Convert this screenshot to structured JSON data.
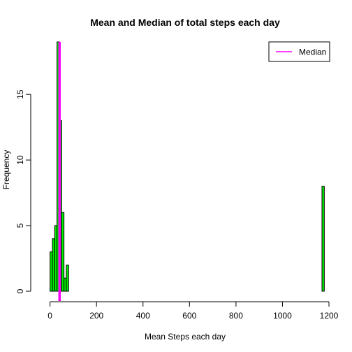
{
  "chart_data": {
    "type": "bar",
    "title": "Mean and Median of total steps each day",
    "xlabel": "Mean Steps each day",
    "ylabel": "Frequency",
    "xlim": [
      -38,
      1200
    ],
    "ylim": [
      0,
      19
    ],
    "x_ticks": [
      0,
      200,
      400,
      600,
      800,
      1000,
      1200
    ],
    "y_ticks": [
      0,
      5,
      10,
      15
    ],
    "bin_width": 10,
    "bins": [
      {
        "x0": 0,
        "x1": 10,
        "count": 3
      },
      {
        "x0": 10,
        "x1": 20,
        "count": 4
      },
      {
        "x0": 20,
        "x1": 30,
        "count": 5
      },
      {
        "x0": 30,
        "x1": 40,
        "count": 19
      },
      {
        "x0": 40,
        "x1": 50,
        "count": 13
      },
      {
        "x0": 50,
        "x1": 60,
        "count": 6
      },
      {
        "x0": 60,
        "x1": 70,
        "count": 1
      },
      {
        "x0": 70,
        "x1": 80,
        "count": 2
      },
      {
        "x0": 1170,
        "x1": 1180,
        "count": 8
      }
    ],
    "bar_fill": "#00ee00",
    "bar_stroke": "#000000",
    "median": {
      "value": 41,
      "color": "#ff00ff"
    },
    "legend": {
      "placement": "top-right",
      "entries": [
        {
          "label": "Median",
          "color": "#ff00ff"
        }
      ]
    },
    "grid": false
  }
}
